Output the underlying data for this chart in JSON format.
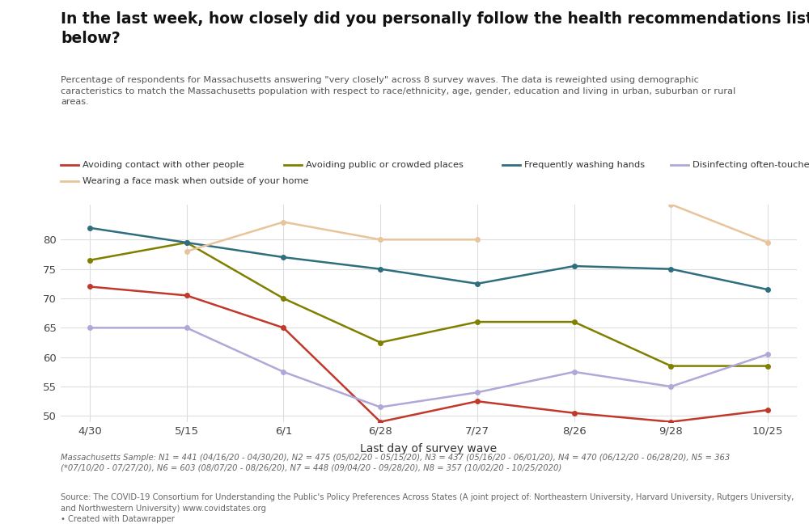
{
  "title": "In the last week, how closely did you personally follow the health recommendations listed\nbelow?",
  "subtitle": "Percentage of respondents for Massachusetts answering \"very closely\" across 8 survey waves. The data is reweighted using demographic\ncaracteristics to match the Massachusetts population with respect to race/ethnicity, age, gender, education and living in urban, suburban or rural\nareas.",
  "xlabel": "Last day of survey wave",
  "x_labels": [
    "4/30",
    "5/15",
    "6/1",
    "6/28",
    "7/27",
    "8/26",
    "9/28",
    "10/25"
  ],
  "ylim": [
    49,
    86
  ],
  "yticks": [
    50,
    55,
    60,
    65,
    70,
    75,
    80
  ],
  "series": {
    "Avoiding contact with other people": {
      "color": "#c0392b",
      "values": [
        72,
        70.5,
        65,
        49,
        52.5,
        50.5,
        49,
        51
      ]
    },
    "Avoiding public or crowded places": {
      "color": "#808000",
      "values": [
        76.5,
        79.5,
        70,
        62.5,
        66,
        66,
        58.5,
        58.5
      ]
    },
    "Frequently washing hands": {
      "color": "#2e6e7e",
      "values": [
        82,
        79.5,
        77,
        75,
        72.5,
        75.5,
        75,
        71.5
      ]
    },
    "Disinfecting often-touched surfaces": {
      "color": "#b0a8d8",
      "values": [
        65,
        65,
        57.5,
        51.5,
        54,
        57.5,
        55,
        60.5
      ]
    },
    "Wearing a face mask when outside of your home": {
      "color": "#e8c49a",
      "values": [
        null,
        78,
        83,
        80,
        80,
        null,
        86,
        79.5
      ]
    }
  },
  "footnote1": "Massachusetts Sample: N1 = 441 (04/16/20 - 04/30/20), N2 = 475 (05/02/20 - 05/15/20), N3 = 437 (05/16/20 - 06/01/20), N4 = 470 (06/12/20 - 06/28/20), N5 = 363\n(*07/10/20 - 07/27/20), N6 = 603 (08/07/20 - 08/26/20), N7 = 448 (09/04/20 - 09/28/20), N8 = 357 (10/02/20 - 10/25/2020)",
  "footnote2": "Source: The COVID-19 Consortium for Understanding the Public's Policy Preferences Across States (A joint project of: Northeastern University, Harvard University, Rutgers University,\nand Northwestern University) www.covidstates.org\n• Created with Datawrapper",
  "background_color": "#ffffff",
  "grid_color": "#dddddd",
  "legend_row1": [
    "Avoiding contact with other people",
    "Avoiding public or crowded places",
    "Frequently washing hands",
    "Disinfecting often-touched surfaces"
  ],
  "legend_row2": [
    "Wearing a face mask when outside of your home"
  ]
}
